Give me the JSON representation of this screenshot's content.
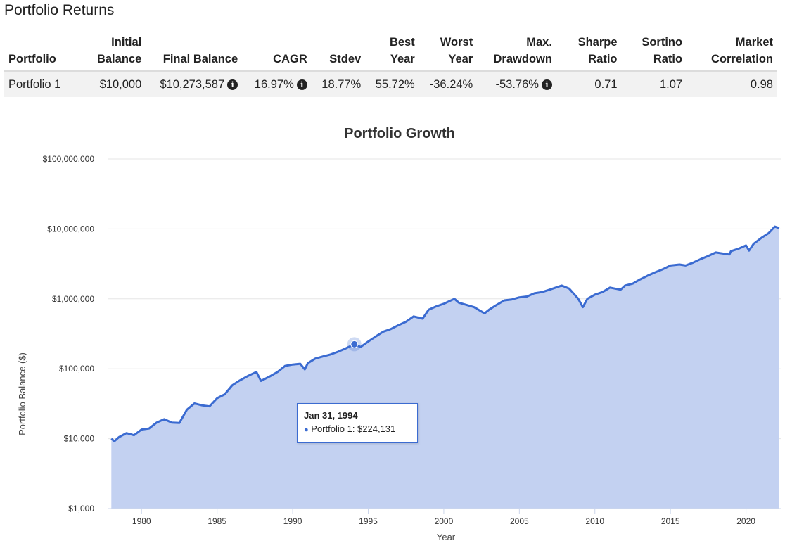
{
  "returns": {
    "title": "Portfolio Returns",
    "columns": [
      "Portfolio",
      "Initial Balance",
      "Final Balance",
      "CAGR",
      "Stdev",
      "Best Year",
      "Worst Year",
      "Max. Drawdown",
      "Sharpe Ratio",
      "Sortino Ratio",
      "Market Correlation"
    ],
    "row": {
      "portfolio": "Portfolio 1",
      "initial_balance": "$10,000",
      "final_balance": "$10,273,587",
      "cagr": "16.97%",
      "stdev": "18.77%",
      "best_year": "55.72%",
      "worst_year": "-36.24%",
      "max_drawdown": "-53.76%",
      "sharpe": "0.71",
      "sortino": "1.07",
      "market_correlation": "0.98"
    },
    "info_icon": "info-circle-icon"
  },
  "tooltip": {
    "date": "Jan 31, 1994",
    "text": "Portfolio 1: $224,131"
  },
  "chart_data": {
    "type": "area",
    "title": "Portfolio Growth",
    "xlabel": "Year",
    "ylabel": "Portfolio Balance ($)",
    "yscale": "log",
    "xlim": [
      1977.8,
      2022.3
    ],
    "ylim": [
      1000,
      100000000
    ],
    "x_ticks": [
      1980,
      1985,
      1990,
      1995,
      2000,
      2005,
      2010,
      2015,
      2020
    ],
    "y_ticks": [
      1000,
      10000,
      100000,
      1000000,
      10000000,
      100000000
    ],
    "y_tick_labels": [
      "$1,000",
      "$10,000",
      "$100,000",
      "$1,000,000",
      "$10,000,000",
      "$100,000,000"
    ],
    "grid": true,
    "colors": {
      "line": "#3b6bd1",
      "fill": "#c3d1f1"
    },
    "highlight": {
      "x": 1994.08,
      "y": 224131
    },
    "series": [
      {
        "name": "Portfolio 1",
        "x": [
          1978.0,
          1978.2,
          1978.5,
          1979.0,
          1979.5,
          1980.0,
          1980.5,
          1981.0,
          1981.5,
          1982.0,
          1982.5,
          1983.0,
          1983.5,
          1984.0,
          1984.5,
          1985.0,
          1985.5,
          1986.0,
          1986.5,
          1987.0,
          1987.6,
          1987.9,
          1988.5,
          1989.0,
          1989.5,
          1990.0,
          1990.5,
          1990.8,
          1991.0,
          1991.5,
          1992.0,
          1992.5,
          1993.0,
          1993.5,
          1994.08,
          1994.5,
          1995.0,
          1995.5,
          1996.0,
          1996.5,
          1997.0,
          1997.5,
          1998.0,
          1998.6,
          1999.0,
          1999.5,
          2000.0,
          2000.7,
          2001.0,
          2001.5,
          2002.0,
          2002.7,
          2003.0,
          2003.5,
          2004.0,
          2004.5,
          2005.0,
          2005.5,
          2006.0,
          2006.5,
          2007.0,
          2007.8,
          2008.3,
          2008.9,
          2009.2,
          2009.5,
          2010.0,
          2010.5,
          2011.0,
          2011.7,
          2012.0,
          2012.5,
          2013.0,
          2013.5,
          2014.0,
          2014.5,
          2015.0,
          2015.6,
          2016.0,
          2016.5,
          2017.0,
          2017.5,
          2018.0,
          2018.9,
          2019.0,
          2019.5,
          2020.0,
          2020.2,
          2020.5,
          2021.0,
          2021.5,
          2021.9,
          2022.2
        ],
        "y": [
          10000,
          9200,
          10500,
          12000,
          11200,
          13500,
          14000,
          17000,
          19000,
          17000,
          16800,
          26000,
          32000,
          30000,
          29000,
          38000,
          43000,
          58000,
          68000,
          78000,
          90000,
          67000,
          78000,
          90000,
          110000,
          115000,
          118000,
          98000,
          120000,
          140000,
          150000,
          160000,
          175000,
          195000,
          224131,
          205000,
          245000,
          290000,
          340000,
          370000,
          420000,
          470000,
          560000,
          520000,
          700000,
          780000,
          850000,
          1000000,
          880000,
          820000,
          760000,
          620000,
          700000,
          820000,
          950000,
          980000,
          1050000,
          1080000,
          1200000,
          1250000,
          1350000,
          1550000,
          1400000,
          1000000,
          760000,
          1000000,
          1150000,
          1250000,
          1450000,
          1350000,
          1550000,
          1650000,
          1900000,
          2150000,
          2400000,
          2650000,
          3000000,
          3100000,
          3000000,
          3300000,
          3700000,
          4100000,
          4600000,
          4300000,
          4800000,
          5200000,
          5800000,
          4900000,
          6100000,
          7400000,
          8700000,
          10800000,
          10273587
        ]
      }
    ]
  }
}
